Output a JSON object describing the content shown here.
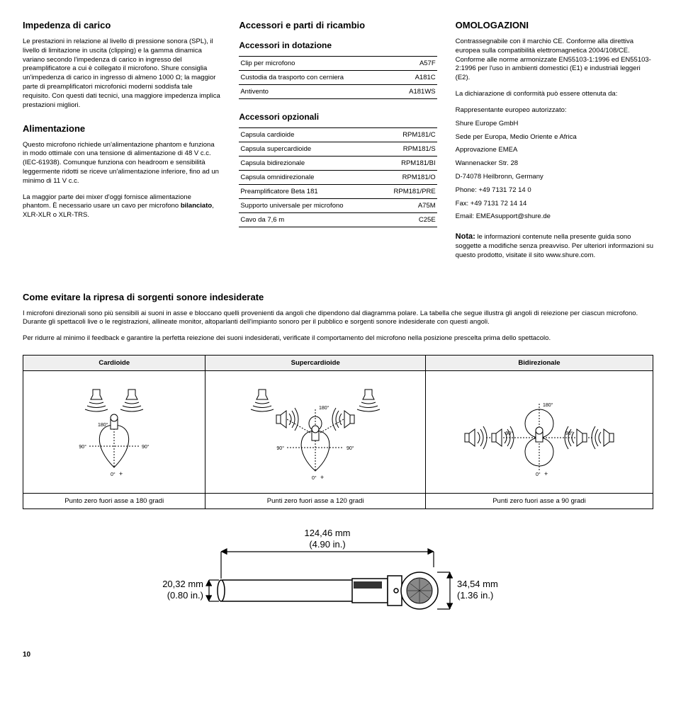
{
  "col1": {
    "h1": "Impedenza di carico",
    "p1": "Le prestazioni in relazione al livello di pressione sonora (SPL), il livello di limitazione in uscita (clipping) e la gamma dinamica variano secondo l'impedenza di carico in ingresso del preamplificatore a cui è collegato il microfono. Shure consiglia un'impedenza di carico in ingresso di almeno 1000 Ω; la maggior parte di preamplificatori microfonici moderni soddisfa tale requisito. Con questi dati tecnici, una maggiore impedenza implica prestazioni migliori.",
    "h2": "Alimentazione",
    "p2": "Questo microfono richiede un'alimentazione phantom e funziona in modo ottimale con una tensione di alimentazione di 48 V c.c. (IEC-61938). Comunque funziona con headroom e sensibilità leggermente ridotti se riceve un'alimentazione inferiore, fino ad un minimo di 11 V c.c.",
    "p3a": "La maggior parte dei mixer d'oggi fornisce alimentazione phantom. È necessario usare un cavo per microfono ",
    "p3b": "bilanciato",
    "p3c": ", XLR-XLR o XLR-TRS."
  },
  "col2": {
    "h1": "Accessori e parti di ricambio",
    "h2": "Accessori in dotazione",
    "table1": [
      {
        "l": "Clip per microfono",
        "r": "A57F"
      },
      {
        "l": "Custodia da trasporto con cerniera",
        "r": "A181C"
      },
      {
        "l": "Antivento",
        "r": "A181WS"
      }
    ],
    "h3": "Accessori opzionali",
    "table2": [
      {
        "l": "Capsula cardioide",
        "r": "RPM181/C"
      },
      {
        "l": "Capsula supercardioide",
        "r": "RPM181/S"
      },
      {
        "l": "Capsula bidirezionale",
        "r": "RPM181/BI"
      },
      {
        "l": "Capsula omnidirezionale",
        "r": "RPM181/O"
      },
      {
        "l": "Preamplificatore Beta 181",
        "r": "RPM181/PRE"
      },
      {
        "l": "Supporto universale per microfono",
        "r": "A75M"
      },
      {
        "l": "Cavo da 7,6 m",
        "r": "C25E"
      }
    ]
  },
  "col3": {
    "h1": "OMOLOGAZIONI",
    "p1": "Contrassegnabile con il marchio CE. Conforme alla direttiva europea sulla compatibilità elettromagnetica 2004/108/CE. Conforme alle norme armonizzate EN55103-1:1996 ed EN55103-2:1996 per l'uso in ambienti domestici (E1) e industriali leggeri (E2).",
    "p2": "La dichiarazione di conformità può essere ottenuta da:",
    "addr": [
      "Rappresentante europeo autorizzato:",
      "Shure Europe GmbH",
      "Sede per Europa, Medio Oriente e Africa",
      "Approvazione EMEA",
      "Wannenacker Str. 28",
      "D-74078 Heilbronn, Germany",
      "Phone: +49 7131 72 14 0",
      "Fax: +49 7131 72 14 14",
      "Email: EMEAsupport@shure.de"
    ],
    "noteLabel": "Nota:",
    "noteBody": " le informazioni contenute nella presente guida sono soggette a modifiche senza preavviso. Per ulteriori informazioni su questo prodotto, visitate il sito www.shure.com."
  },
  "lower": {
    "h1": "Come evitare la ripresa di sorgenti sonore indesiderate",
    "p1": "I microfoni direzionali sono più sensibili ai suoni in asse e bloccano quelli provenienti da angoli che dipendono dal diagramma polare. La tabella che segue illustra gli angoli di reiezione per ciascun microfono. Durante gli spettacoli live o le registrazioni, allineate monitor, altoparlanti dell'impianto sonoro per il pubblico e sorgenti sonore indesiderate con questi angoli.",
    "p2": "Per ridurre al minimo il feedback e garantire la perfetta reiezione dei suoni indesiderati, verificate il comportamento del microfono nella posizione prescelta prima dello spettacolo.",
    "headers": [
      "Cardioide",
      "Supercardioide",
      "Bidirezionale"
    ],
    "captions": [
      "Punto zero fuori asse a 180 gradi",
      "Punti zero fuori asse a 120 gradi",
      "Punti zero fuori asse a 90 gradi"
    ],
    "angles": {
      "a180": "180°",
      "a90": "90°",
      "a0": "0°",
      "plus": "+"
    }
  },
  "dims": {
    "len_mm": "124,46 mm",
    "len_in": "(4.90 in.)",
    "grip_mm": "20,32 mm",
    "grip_in": "(0.80 in.)",
    "head_mm": "34,54 mm",
    "head_in": "(1.36 in.)"
  },
  "pageNum": "10",
  "colors": {
    "stroke": "#000000",
    "fill_light": "#ffffff",
    "grid_bg": "#efefef",
    "hatch": "#888888"
  }
}
